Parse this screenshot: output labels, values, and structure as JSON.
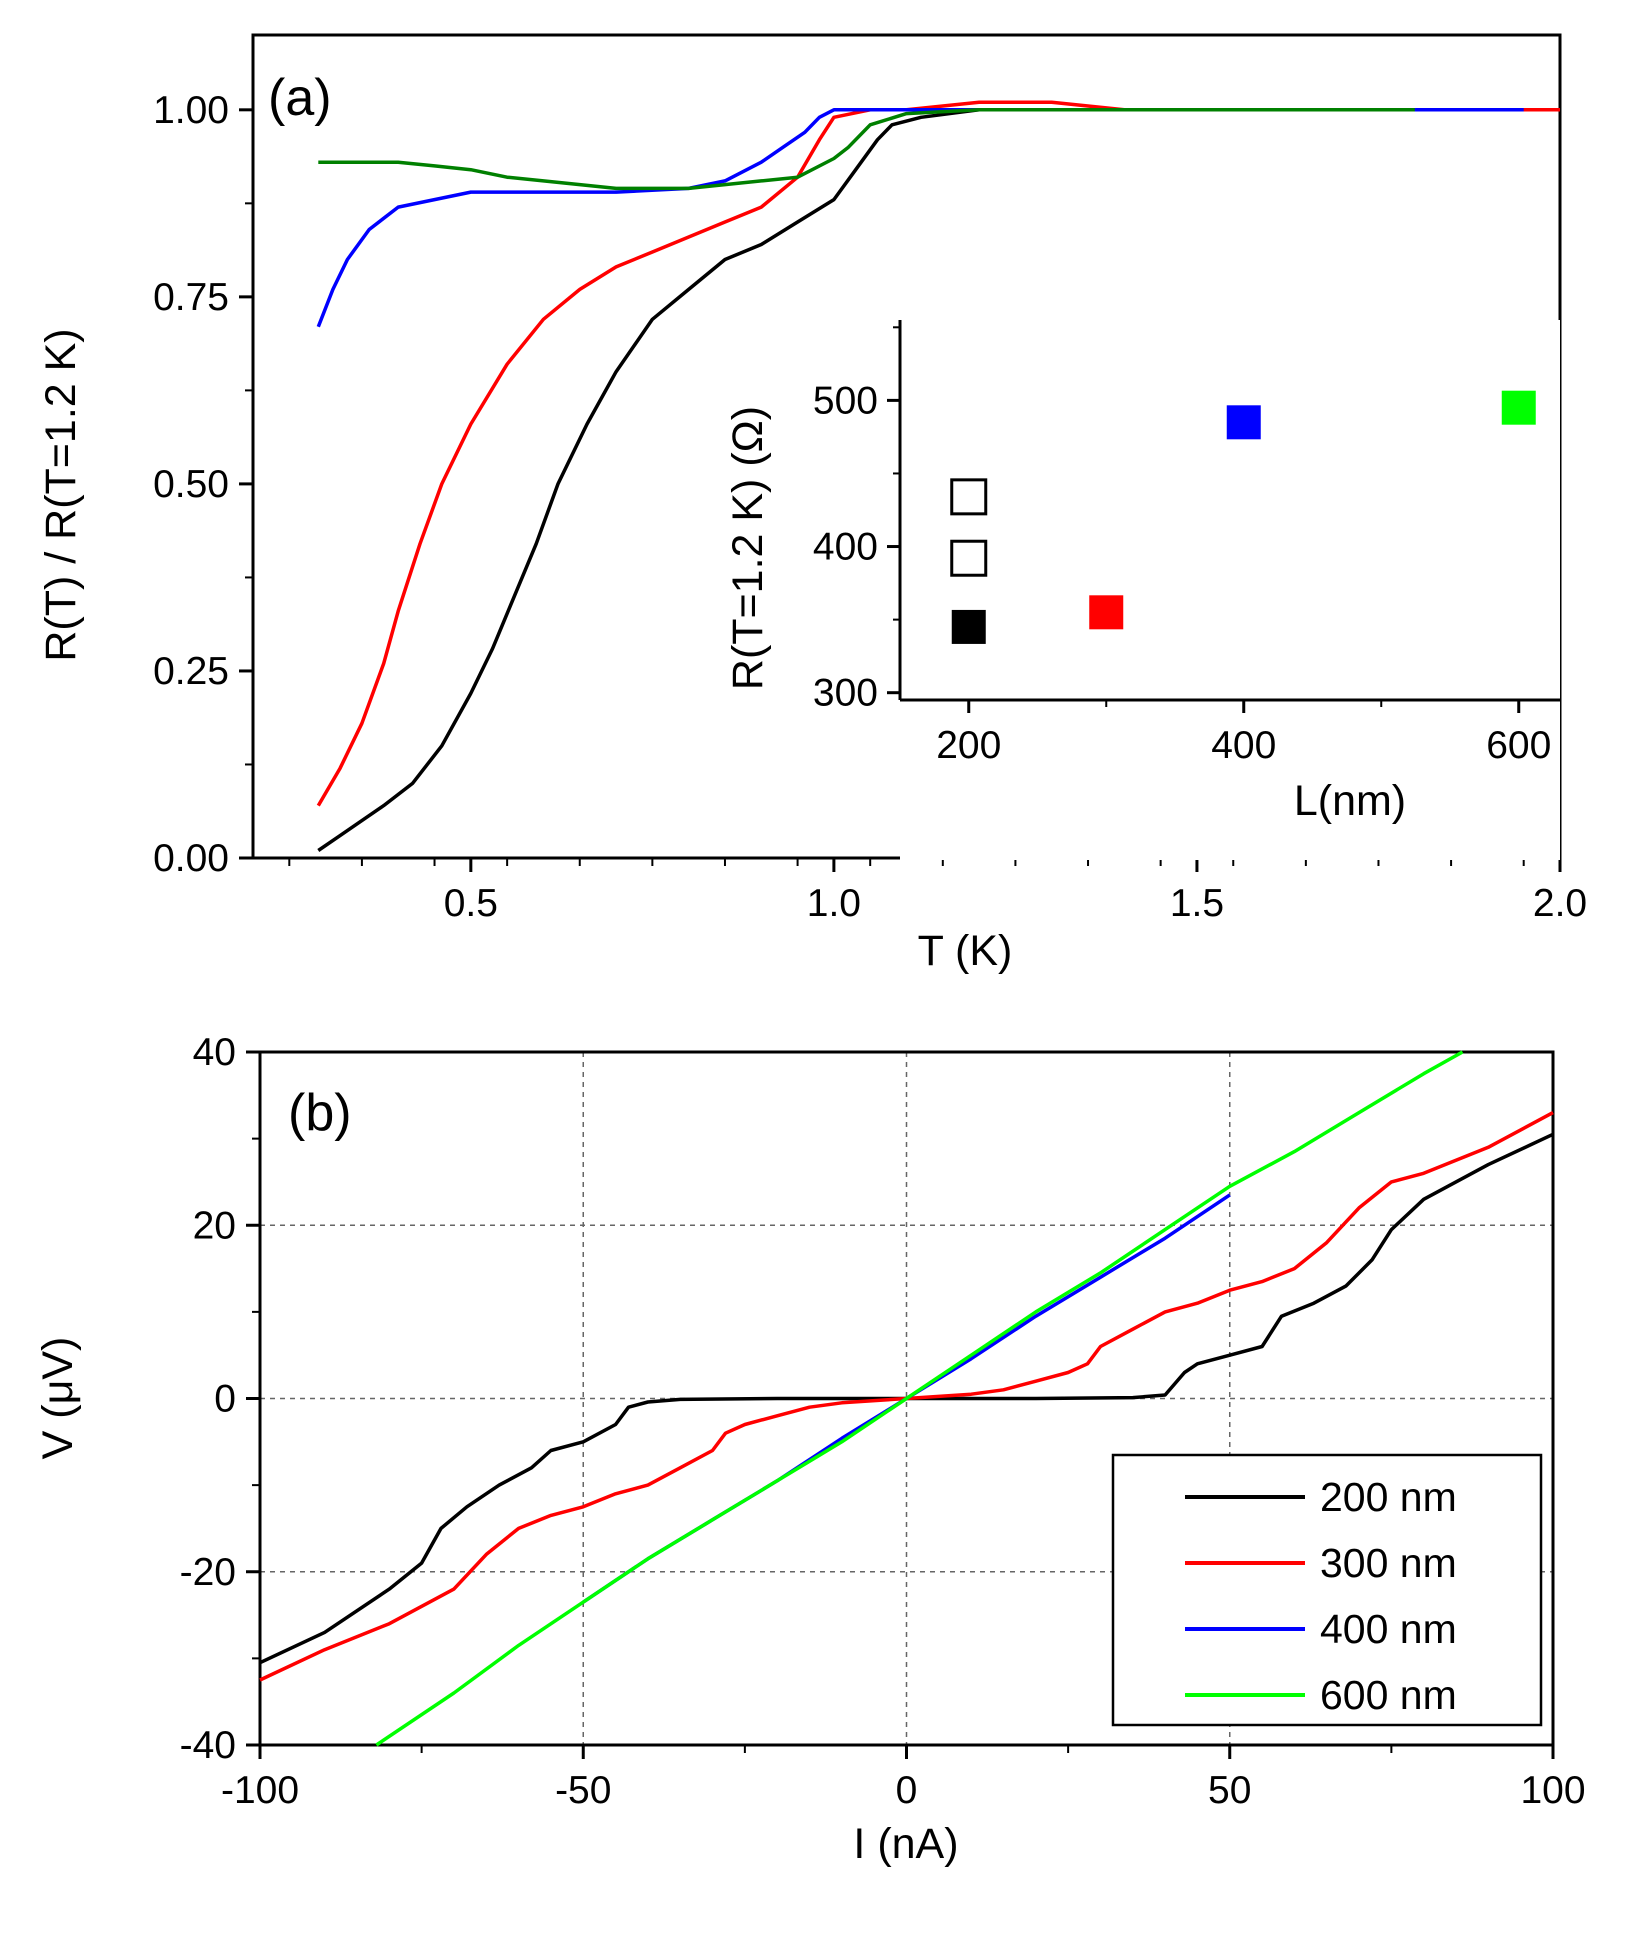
{
  "chart_data": [
    {
      "id": "panel-a",
      "type": "line",
      "panel_label": "(a)",
      "xlabel": "T (K)",
      "ylabel": "R(T) / R(T=1.2 K)",
      "xlim": [
        0.2,
        2.0
      ],
      "ylim": [
        0.0,
        1.1
      ],
      "xticks": [
        0.5,
        1.0,
        1.5,
        2.0
      ],
      "xtick_labels": [
        "0.5",
        "1.0",
        "1.5",
        "2.0"
      ],
      "yticks": [
        0.0,
        0.25,
        0.5,
        0.75,
        1.0
      ],
      "ytick_labels": [
        "0.00",
        "0.25",
        "0.50",
        "0.75",
        "1.00"
      ],
      "grid": false,
      "series": [
        {
          "name": "200 nm",
          "color": "#000000",
          "x": [
            0.29,
            0.32,
            0.35,
            0.38,
            0.42,
            0.46,
            0.5,
            0.53,
            0.56,
            0.59,
            0.62,
            0.66,
            0.7,
            0.75,
            0.8,
            0.85,
            0.9,
            0.95,
            1.0,
            1.03,
            1.06,
            1.08,
            1.12,
            1.2,
            1.3,
            1.4,
            1.5,
            1.6,
            1.7,
            1.8,
            1.9,
            1.95
          ],
          "y": [
            0.01,
            0.03,
            0.05,
            0.07,
            0.1,
            0.15,
            0.22,
            0.28,
            0.35,
            0.42,
            0.5,
            0.58,
            0.65,
            0.72,
            0.76,
            0.8,
            0.82,
            0.85,
            0.88,
            0.92,
            0.96,
            0.98,
            0.99,
            1.0,
            1.0,
            1.0,
            1.0,
            1.0,
            1.0,
            1.0,
            1.0,
            1.0
          ]
        },
        {
          "name": "300 nm",
          "color": "#ff0000",
          "x": [
            0.29,
            0.32,
            0.35,
            0.38,
            0.4,
            0.43,
            0.46,
            0.5,
            0.55,
            0.6,
            0.65,
            0.7,
            0.75,
            0.8,
            0.85,
            0.9,
            0.95,
            0.98,
            1.0,
            1.05,
            1.1,
            1.2,
            1.3,
            1.4,
            1.5,
            1.6,
            1.7,
            1.8,
            1.9,
            2.0
          ],
          "y": [
            0.07,
            0.12,
            0.18,
            0.26,
            0.33,
            0.42,
            0.5,
            0.58,
            0.66,
            0.72,
            0.76,
            0.79,
            0.81,
            0.83,
            0.85,
            0.87,
            0.91,
            0.96,
            0.99,
            1.0,
            1.0,
            1.01,
            1.01,
            1.0,
            1.0,
            1.0,
            1.0,
            1.0,
            1.0,
            1.0
          ]
        },
        {
          "name": "400 nm",
          "color": "#0000ff",
          "x": [
            0.29,
            0.31,
            0.33,
            0.36,
            0.4,
            0.45,
            0.5,
            0.6,
            0.7,
            0.8,
            0.85,
            0.9,
            0.93,
            0.96,
            0.98,
            1.0,
            1.05,
            1.1,
            1.2,
            1.3,
            1.4,
            1.5,
            1.6,
            1.7,
            1.8,
            1.9,
            1.95
          ],
          "y": [
            0.71,
            0.76,
            0.8,
            0.84,
            0.87,
            0.88,
            0.89,
            0.89,
            0.89,
            0.895,
            0.905,
            0.93,
            0.95,
            0.97,
            0.99,
            1.0,
            1.0,
            1.0,
            1.0,
            1.0,
            1.0,
            1.0,
            1.0,
            1.0,
            1.0,
            1.0,
            1.0
          ]
        },
        {
          "name": "600 nm",
          "color": "#008000",
          "x": [
            0.29,
            0.35,
            0.4,
            0.45,
            0.5,
            0.55,
            0.6,
            0.65,
            0.7,
            0.75,
            0.8,
            0.85,
            0.9,
            0.95,
            1.0,
            1.02,
            1.05,
            1.1,
            1.2,
            1.3,
            1.4,
            1.5,
            1.6,
            1.7,
            1.8
          ],
          "y": [
            0.93,
            0.93,
            0.93,
            0.925,
            0.92,
            0.91,
            0.905,
            0.9,
            0.895,
            0.895,
            0.895,
            0.9,
            0.905,
            0.91,
            0.935,
            0.95,
            0.98,
            0.995,
            1.0,
            1.0,
            1.0,
            1.0,
            1.0,
            1.0,
            1.0
          ]
        }
      ],
      "inset": {
        "type": "scatter",
        "xlabel": "L(nm)",
        "ylabel": "R(T=1.2 K) (Ω)",
        "xlim": [
          150,
          630
        ],
        "ylim": [
          295,
          555
        ],
        "xticks": [
          200,
          400,
          600
        ],
        "xtick_labels": [
          "200",
          "400",
          "600"
        ],
        "yticks": [
          300,
          400,
          500
        ],
        "ytick_labels": [
          "300",
          "400",
          "500"
        ],
        "points": [
          {
            "x": 200,
            "y": 345,
            "color": "#000000",
            "filled": true
          },
          {
            "x": 200,
            "y": 392,
            "color": "#000000",
            "filled": false
          },
          {
            "x": 200,
            "y": 434,
            "color": "#000000",
            "filled": false
          },
          {
            "x": 300,
            "y": 355,
            "color": "#ff0000",
            "filled": true
          },
          {
            "x": 400,
            "y": 485,
            "color": "#0000ff",
            "filled": true
          },
          {
            "x": 600,
            "y": 495,
            "color": "#00ff00",
            "filled": true
          }
        ]
      }
    },
    {
      "id": "panel-b",
      "type": "line",
      "panel_label": "(b)",
      "xlabel": "I (nA)",
      "ylabel": "V (μV)",
      "xlim": [
        -100,
        100
      ],
      "ylim": [
        -40,
        40
      ],
      "xticks": [
        -100,
        -50,
        0,
        50,
        100
      ],
      "xtick_labels": [
        "-100",
        "-50",
        "0",
        "50",
        "100"
      ],
      "yticks": [
        -40,
        -20,
        0,
        20,
        40
      ],
      "ytick_labels": [
        "-40",
        "-20",
        "0",
        "20",
        "40"
      ],
      "grid": true,
      "legend_position": "bottom-right",
      "series": [
        {
          "name": "200 nm",
          "color": "#000000",
          "x": [
            -100,
            -90,
            -80,
            -75,
            -72,
            -68,
            -63,
            -58,
            -55,
            -50,
            -45,
            -43,
            -40,
            -35,
            -20,
            0,
            20,
            35,
            40,
            43,
            45,
            50,
            55,
            58,
            63,
            68,
            72,
            75,
            80,
            90,
            100
          ],
          "y": [
            -30.5,
            -27,
            -22,
            -19,
            -15,
            -12.5,
            -10,
            -8,
            -6,
            -5,
            -3,
            -1,
            -0.4,
            -0.1,
            0,
            0,
            0,
            0.1,
            0.4,
            3,
            4,
            5,
            6,
            9.5,
            11,
            13,
            16,
            19.5,
            23,
            27,
            30.5
          ]
        },
        {
          "name": "300 nm",
          "color": "#ff0000",
          "x": [
            -100,
            -90,
            -80,
            -70,
            -65,
            -60,
            -55,
            -50,
            -45,
            -40,
            -35,
            -30,
            -28,
            -25,
            -20,
            -15,
            -10,
            0,
            10,
            15,
            20,
            25,
            28,
            30,
            35,
            40,
            45,
            50,
            55,
            60,
            65,
            70,
            75,
            80,
            90,
            100
          ],
          "y": [
            -32.5,
            -29,
            -26,
            -22,
            -18,
            -15,
            -13.5,
            -12.5,
            -11,
            -10,
            -8,
            -6,
            -4,
            -3,
            -2,
            -1,
            -0.5,
            0,
            0.5,
            1,
            2,
            3,
            4,
            6,
            8,
            10,
            11,
            12.5,
            13.5,
            15,
            18,
            22,
            25,
            26,
            29,
            33
          ]
        },
        {
          "name": "400 nm",
          "color": "#0000ff",
          "x": [
            -50,
            -40,
            -30,
            -20,
            -10,
            0,
            10,
            20,
            30,
            40,
            50
          ],
          "y": [
            -23.5,
            -18.5,
            -14,
            -9.5,
            -4.6,
            0,
            4.6,
            9.5,
            14,
            18.5,
            23.5
          ]
        },
        {
          "name": "600 nm",
          "color": "#00ff00",
          "x": [
            -82,
            -70,
            -60,
            -50,
            -40,
            -30,
            -20,
            -10,
            0,
            10,
            20,
            30,
            40,
            50,
            60,
            70,
            80,
            86
          ],
          "y": [
            -40,
            -34,
            -28.5,
            -23.5,
            -18.5,
            -14,
            -9.5,
            -5,
            0,
            5,
            10,
            14.5,
            19.5,
            24.5,
            28.5,
            33,
            37.5,
            40
          ]
        }
      ]
    }
  ]
}
